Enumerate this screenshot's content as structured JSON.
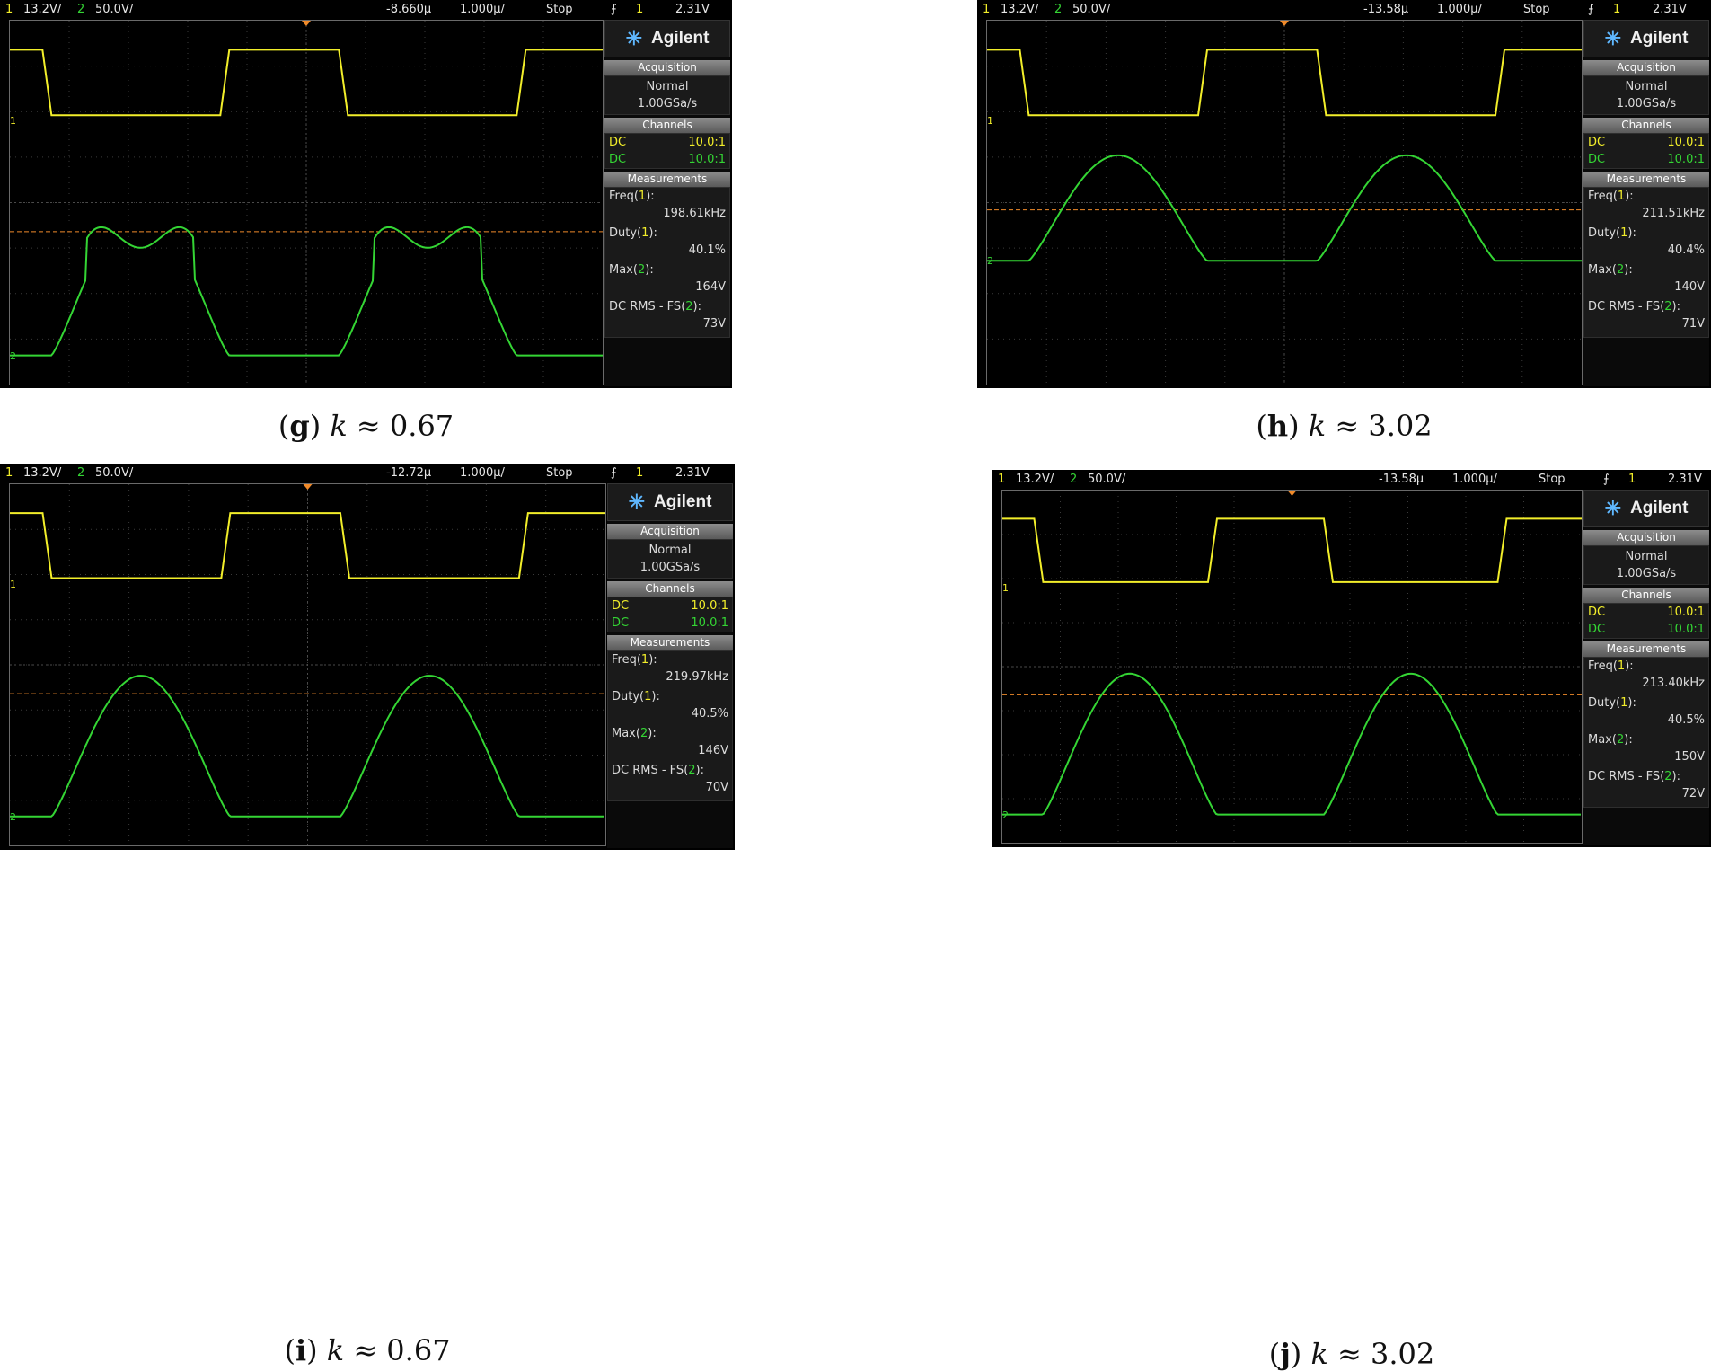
{
  "panels": [
    {
      "id": "g",
      "status": {
        "ch1": "1",
        "ch1_scale": "13.2V/",
        "ch2": "2",
        "ch2_scale": "50.0V/",
        "delay": "-8.660µ",
        "timebase": "1.000µ/",
        "run": "Stop",
        "trig_icon": "trigger-edge-icon",
        "trig_ch": "1",
        "trig_level": "2.31V"
      },
      "brand": "Agilent",
      "acquisition": {
        "header": "Acquisition",
        "mode": "Normal",
        "rate": "1.00GSa/s"
      },
      "channels": {
        "header": "Channels",
        "rows": [
          {
            "coupling": "DC",
            "probe": "10.0:1",
            "color": "#f2ee2a"
          },
          {
            "coupling": "DC",
            "probe": "10.0:1",
            "color": "#34d534"
          }
        ]
      },
      "measurements": {
        "header": "Measurements",
        "items": [
          {
            "name": "Freq",
            "ch": "1",
            "value": "198.61kHz"
          },
          {
            "name": "Duty",
            "ch": "1",
            "value": "40.1%"
          },
          {
            "name": "Max",
            "ch": "2",
            "value": "164V"
          },
          {
            "name": "DC RMS - FS",
            "ch": "2",
            "value": "73V"
          }
        ]
      },
      "caption": {
        "letter": "g",
        "var": "k",
        "text": " ≈ 0.67"
      }
    },
    {
      "id": "h",
      "status": {
        "ch1": "1",
        "ch1_scale": "13.2V/",
        "ch2": "2",
        "ch2_scale": "50.0V/",
        "delay": "-13.58µ",
        "timebase": "1.000µ/",
        "run": "Stop",
        "trig_icon": "trigger-edge-icon",
        "trig_ch": "1",
        "trig_level": "2.31V"
      },
      "brand": "Agilent",
      "acquisition": {
        "header": "Acquisition",
        "mode": "Normal",
        "rate": "1.00GSa/s"
      },
      "channels": {
        "header": "Channels",
        "rows": [
          {
            "coupling": "DC",
            "probe": "10.0:1",
            "color": "#f2ee2a"
          },
          {
            "coupling": "DC",
            "probe": "10.0:1",
            "color": "#34d534"
          }
        ]
      },
      "measurements": {
        "header": "Measurements",
        "items": [
          {
            "name": "Freq",
            "ch": "1",
            "value": "211.51kHz"
          },
          {
            "name": "Duty",
            "ch": "1",
            "value": "40.4%"
          },
          {
            "name": "Max",
            "ch": "2",
            "value": "140V"
          },
          {
            "name": "DC RMS - FS",
            "ch": "2",
            "value": "71V"
          }
        ]
      },
      "caption": {
        "letter": "h",
        "var": "k",
        "text": " ≈ 3.02"
      }
    },
    {
      "id": "i",
      "status": {
        "ch1": "1",
        "ch1_scale": "13.2V/",
        "ch2": "2",
        "ch2_scale": "50.0V/",
        "delay": "-12.72µ",
        "timebase": "1.000µ/",
        "run": "Stop",
        "trig_icon": "trigger-edge-icon",
        "trig_ch": "1",
        "trig_level": "2.31V"
      },
      "brand": "Agilent",
      "acquisition": {
        "header": "Acquisition",
        "mode": "Normal",
        "rate": "1.00GSa/s"
      },
      "channels": {
        "header": "Channels",
        "rows": [
          {
            "coupling": "DC",
            "probe": "10.0:1",
            "color": "#f2ee2a"
          },
          {
            "coupling": "DC",
            "probe": "10.0:1",
            "color": "#34d534"
          }
        ]
      },
      "measurements": {
        "header": "Measurements",
        "items": [
          {
            "name": "Freq",
            "ch": "1",
            "value": "219.97kHz"
          },
          {
            "name": "Duty",
            "ch": "1",
            "value": "40.5%"
          },
          {
            "name": "Max",
            "ch": "2",
            "value": "146V"
          },
          {
            "name": "DC RMS - FS",
            "ch": "2",
            "value": "70V"
          }
        ]
      },
      "caption": {
        "letter": "i",
        "var": "k",
        "text": " ≈ 0.67"
      }
    },
    {
      "id": "j",
      "status": {
        "ch1": "1",
        "ch1_scale": "13.2V/",
        "ch2": "2",
        "ch2_scale": "50.0V/",
        "delay": "-13.58µ",
        "timebase": "1.000µ/",
        "run": "Stop",
        "trig_icon": "trigger-edge-icon",
        "trig_ch": "1",
        "trig_level": "2.31V"
      },
      "brand": "Agilent",
      "acquisition": {
        "header": "Acquisition",
        "mode": "Normal",
        "rate": "1.00GSa/s"
      },
      "channels": {
        "header": "Channels",
        "rows": [
          {
            "coupling": "DC",
            "probe": "10.0:1",
            "color": "#f2ee2a"
          },
          {
            "coupling": "DC",
            "probe": "10.0:1",
            "color": "#34d534"
          }
        ]
      },
      "measurements": {
        "header": "Measurements",
        "items": [
          {
            "name": "Freq",
            "ch": "1",
            "value": "213.40kHz"
          },
          {
            "name": "Duty",
            "ch": "1",
            "value": "40.5%"
          },
          {
            "name": "Max",
            "ch": "2",
            "value": "150V"
          },
          {
            "name": "DC RMS - FS",
            "ch": "2",
            "value": "72V"
          }
        ]
      },
      "caption": {
        "letter": "j",
        "var": "k",
        "text": " ≈ 3.02"
      }
    }
  ],
  "colors": {
    "ch1": "#f2ee2a",
    "ch2": "#34d534",
    "trigger_level": "#f08a2a",
    "grid": "#3a3a3a",
    "background": "#000000"
  }
}
